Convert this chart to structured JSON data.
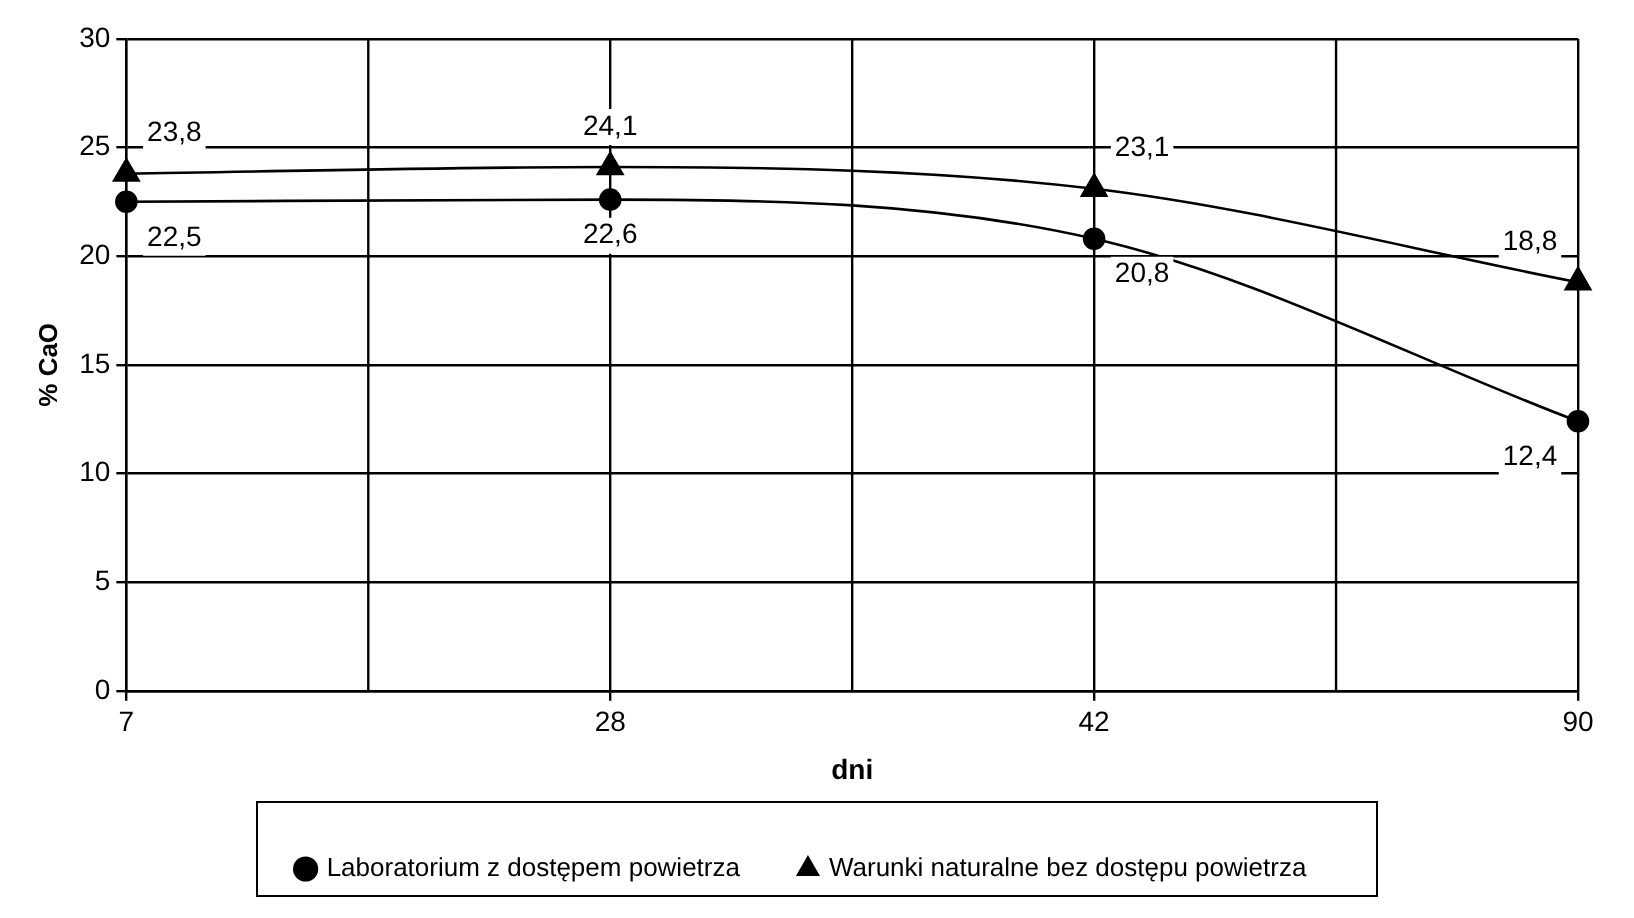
{
  "chart_data": {
    "type": "line",
    "xlabel": "dni",
    "ylabel": "% CaO",
    "categories": [
      "7",
      "28",
      "42",
      "90"
    ],
    "series": [
      {
        "name": "Laboratorium z dostępem powietrza",
        "color": "#000000",
        "marker": "circle",
        "values": [
          22.5,
          22.6,
          20.8,
          12.4
        ],
        "value_labels": [
          "22,5",
          "22,6",
          "20,8",
          "12,4"
        ]
      },
      {
        "name": "Warunki naturalne bez dostępu powietrza",
        "color": "#000000",
        "marker": "triangle",
        "values": [
          23.8,
          24.1,
          23.1,
          18.8
        ],
        "value_labels": [
          "23,8",
          "24,1",
          "23,1",
          "18,8"
        ]
      }
    ],
    "ylim": [
      0,
      30
    ],
    "yticks": [
      0,
      5,
      10,
      15,
      20,
      25,
      30
    ],
    "grid": true,
    "legend": "bottom"
  }
}
